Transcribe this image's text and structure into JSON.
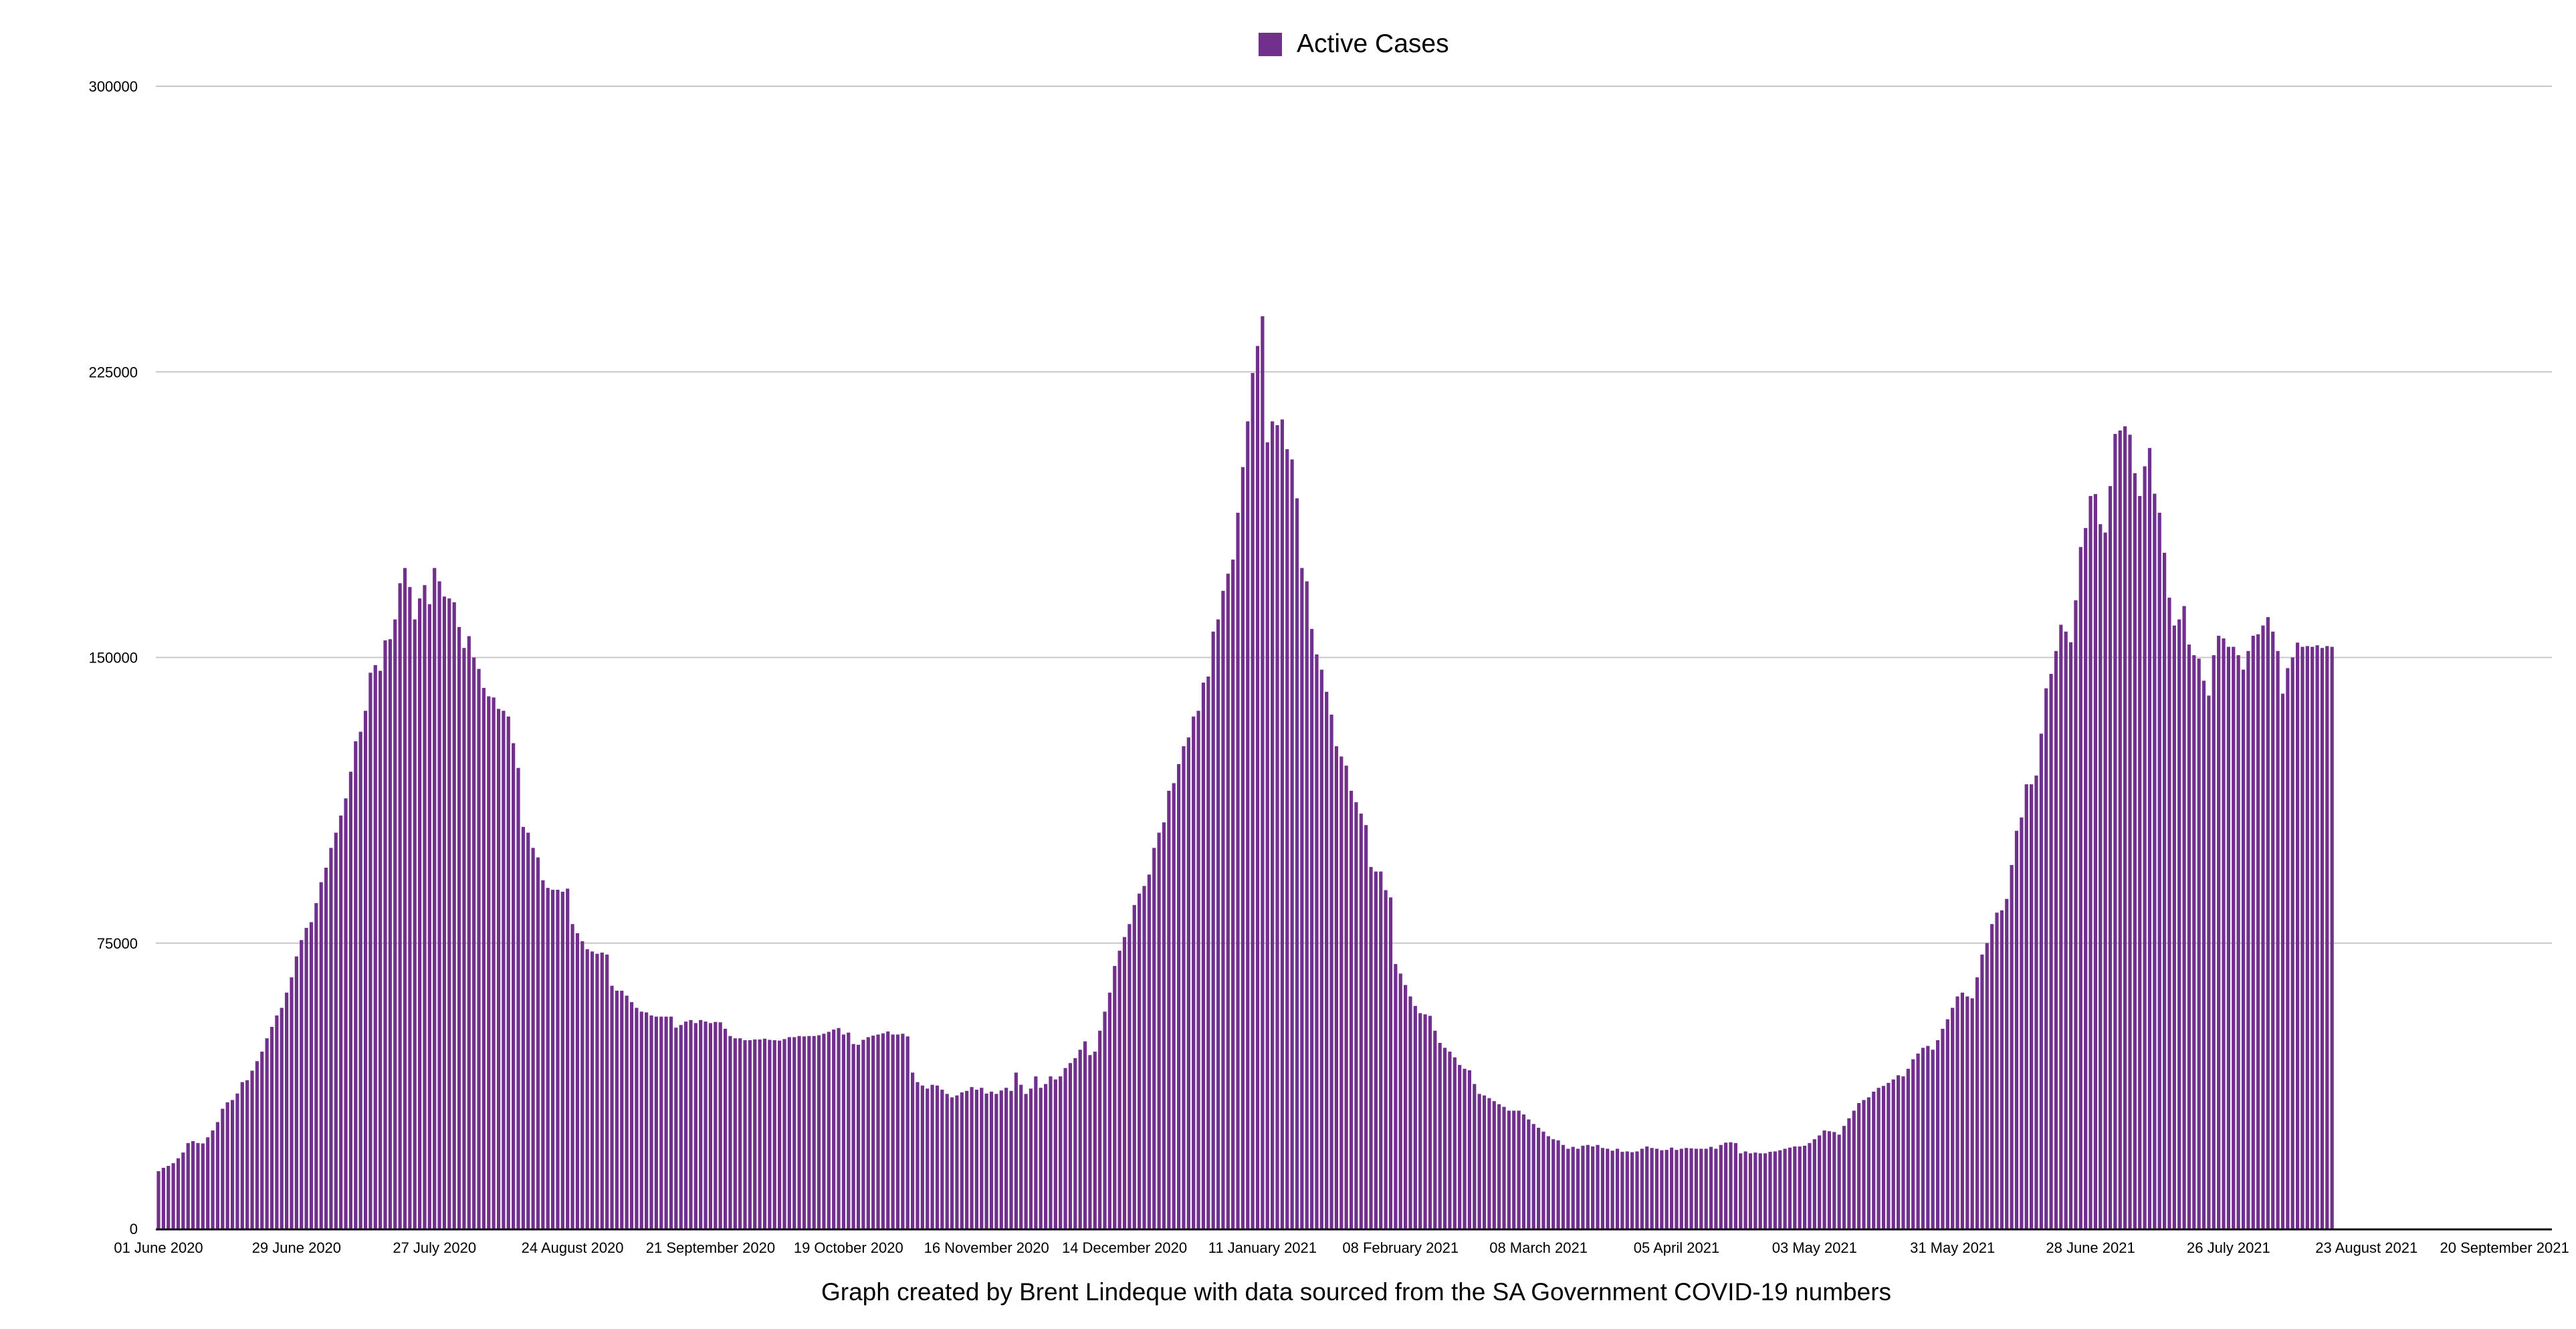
{
  "chart_data": {
    "type": "bar",
    "title": "",
    "legend": [
      {
        "label": "Active Cases",
        "color": "#70308c"
      }
    ],
    "legend_position": "top-center",
    "caption": "Graph created by Brent Lindeque with data sourced from the SA Government COVID-19 numbers",
    "xlabel": "",
    "ylabel": "",
    "ylim": [
      0,
      300000
    ],
    "y_ticks": [
      "0",
      "75000",
      "150000",
      "225000",
      "300000"
    ],
    "y_tick_values": [
      0,
      75000,
      150000,
      225000,
      300000
    ],
    "grid": "horizontal",
    "x_start_date": "01 June 2020",
    "x_interval": "daily",
    "x_range_days": [
      0,
      486
    ],
    "x_tick_interval_days": 28,
    "x_ticks": [
      "01 June 2020",
      "29 June 2020",
      "27 July 2020",
      "24 August 2020",
      "21 September 2020",
      "19 October 2020",
      "16 November 2020",
      "14 December 2020",
      "11 January 2021",
      "08 February 2021",
      "08 March 2021",
      "05 April 2021",
      "03 May 2021",
      "31 May 2021",
      "28 June 2021",
      "26 July 2021",
      "23 August 2021",
      "20 September 2021"
    ],
    "series": [
      {
        "name": "Active Cases",
        "values": [
          15100,
          16000,
          16500,
          17200,
          18500,
          20000,
          22500,
          23000,
          22500,
          22400,
          24000,
          25800,
          28000,
          31500,
          33200,
          33800,
          35500,
          38500,
          39000,
          41500,
          44000,
          46500,
          50000,
          53000,
          56000,
          58000,
          62000,
          66000,
          71500,
          75800,
          79000,
          80500,
          85500,
          91000,
          94800,
          100000,
          104000,
          108500,
          113000,
          120000,
          128000,
          130500,
          136000,
          146000,
          148000,
          146500,
          154500,
          154800,
          160000,
          169500,
          173500,
          168500,
          160000,
          165500,
          169000,
          164000,
          173500,
          170000,
          166000,
          165500,
          164500,
          158000,
          152500,
          155600,
          150000,
          147000,
          142000,
          139800,
          139500,
          136500,
          136000,
          134500,
          127500,
          121000,
          105500,
          104000,
          100000,
          97500,
          91500,
          89500,
          89000,
          89000,
          88500,
          89300,
          80000,
          77600,
          75500,
          73400,
          72800,
          72200,
          72500,
          72000,
          63800,
          62500,
          62500,
          61200,
          59500,
          58000,
          57000,
          56800,
          56000,
          55700,
          55700,
          55700,
          55700,
          52800,
          53500,
          54400,
          54800,
          54000,
          54800,
          54400,
          54000,
          54300,
          54200,
          52500,
          50600,
          50000,
          50000,
          49500,
          49500,
          49700,
          49700,
          49900,
          49600,
          49500,
          49400,
          49800,
          50300,
          50300,
          50600,
          50500,
          50600,
          50600,
          50800,
          51200,
          51700,
          52300,
          52700,
          51000,
          51500,
          48500,
          48300,
          49600,
          50300,
          50700,
          51000,
          51300,
          51800,
          51000,
          51000,
          51200,
          50500,
          41000,
          38500,
          37600,
          36800,
          37800,
          37600,
          36500,
          35400,
          34500,
          35000,
          35800,
          36200,
          37200,
          36500,
          37000,
          35500,
          36000,
          35400,
          36300,
          37000,
          36200,
          41000,
          37800,
          35400,
          36800,
          40000,
          37000,
          38000,
          40000,
          39200,
          40000,
          42200,
          43500,
          44800,
          47000,
          49200,
          45600,
          46500,
          52000,
          57000,
          62000,
          69000,
          73000,
          76600,
          80000,
          85000,
          88000,
          90000,
          93000,
          100000,
          104000,
          106700,
          115000,
          117000,
          122000,
          126700,
          129000,
          134500,
          136000,
          143400,
          145000,
          156800,
          160000,
          167500,
          172000,
          175700,
          188000,
          200000,
          212000,
          224700,
          231800,
          239600,
          206500,
          212000,
          211000,
          212500,
          204700,
          202000,
          191800,
          173500,
          170000,
          157500,
          150800,
          146800,
          141000,
          135000,
          126700,
          124000,
          121600,
          115000,
          112000,
          109000,
          106000,
          95000,
          93800,
          93800,
          88900,
          87000,
          69500,
          67000,
          64000,
          61000,
          58500,
          56600,
          56300,
          55900,
          52000,
          48800,
          47500,
          46500,
          45000,
          43000,
          42000,
          41600,
          38000,
          35400,
          35000,
          34300,
          33500,
          32700,
          32000,
          31000,
          31000,
          31000,
          30000,
          28700,
          27500,
          26500,
          25500,
          24300,
          23500,
          23200,
          22000,
          21000,
          21500,
          21000,
          21800,
          22000,
          21600,
          22000,
          21200,
          21000,
          20500,
          21000,
          20200,
          20300,
          20100,
          20300,
          21000,
          21600,
          21200,
          21000,
          20600,
          20700,
          21300,
          20700,
          21000,
          21200,
          21100,
          21000,
          21000,
          21000,
          21500,
          21000,
          22000,
          22600,
          22700,
          22500,
          19800,
          20300,
          19800,
          20000,
          19800,
          19800,
          20200,
          20300,
          20600,
          21000,
          21300,
          21600,
          21600,
          21800,
          22500,
          23500,
          24500,
          25800,
          25600,
          25400,
          24700,
          27000,
          29000,
          31000,
          33000,
          33800,
          34500,
          36000,
          37000,
          37500,
          38300,
          39200,
          40300,
          40000,
          42000,
          44500,
          46000,
          47500,
          48000,
          47000,
          49500,
          52500,
          55000,
          58000,
          61000,
          62000,
          61000,
          60500,
          66000,
          72000,
          75000,
          80000,
          83000,
          83600,
          86600,
          95500,
          104500,
          108000,
          116700,
          116700,
          119000,
          130000,
          141900,
          145700,
          151700,
          158600,
          156800,
          154000,
          165000,
          179000,
          184000,
          192400,
          192900,
          185000,
          182800,
          195000,
          208700,
          209600,
          210700,
          208500,
          198400,
          192400,
          200200,
          205000,
          193000,
          188000,
          177500,
          165700,
          158400,
          160000,
          163500,
          153400,
          150600,
          149700,
          143900,
          140000,
          150600,
          155700,
          155000,
          152800,
          152800,
          150600,
          146800,
          151700,
          155700,
          156100,
          158400,
          160600,
          156800,
          151700,
          140500,
          147200,
          150000,
          153900,
          152800,
          153000,
          152800,
          153200,
          152500,
          153000,
          152800
        ]
      }
    ]
  }
}
